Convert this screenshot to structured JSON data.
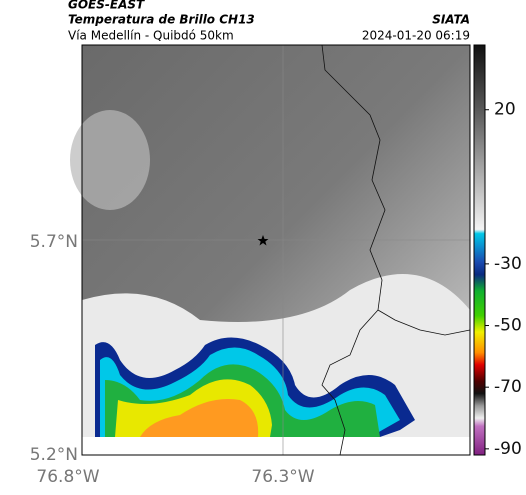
{
  "header": {
    "title": "GOES-EAST",
    "subtitle": "Temperatura de Brillo CH13",
    "caption": "Vía Medellín - Quibdó 50km",
    "source": "SIATA",
    "timestamp": "2024-01-20 06:19"
  },
  "axes": {
    "lat_labels": [
      "5.7°N",
      "5.2°N"
    ],
    "lon_labels": [
      "76.8°W",
      "76.3°W"
    ]
  },
  "colorbar": {
    "range": [
      41,
      -92
    ],
    "ticks": [
      20,
      -30,
      -50,
      -70,
      -90
    ]
  }
}
